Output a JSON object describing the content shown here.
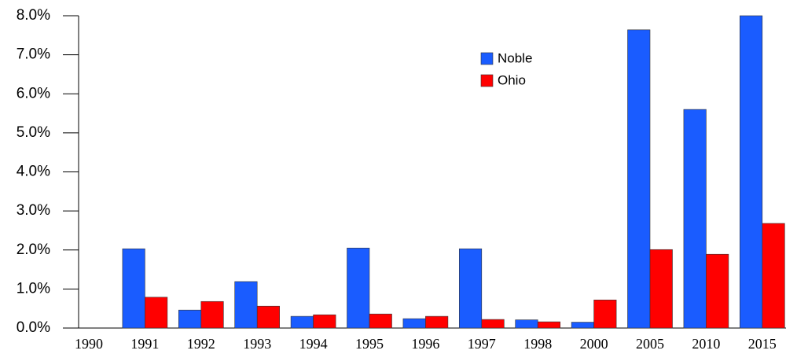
{
  "chart_data": {
    "type": "bar",
    "categories": [
      "1990",
      "1991",
      "1992",
      "1993",
      "1994",
      "1995",
      "1996",
      "1997",
      "1998",
      "2000",
      "2005",
      "2010",
      "2015"
    ],
    "series": [
      {
        "name": "Noble",
        "color": "#1a5cff",
        "values": [
          0,
          2.03,
          0.46,
          1.19,
          0.3,
          2.05,
          0.24,
          2.03,
          0.21,
          0.15,
          7.64,
          5.6,
          8.0
        ]
      },
      {
        "name": "Ohio",
        "color": "#ff0000",
        "values": [
          0,
          0.79,
          0.68,
          0.56,
          0.34,
          0.36,
          0.3,
          0.22,
          0.16,
          0.72,
          2.01,
          1.89,
          2.68
        ]
      }
    ],
    "ylim": [
      0,
      8
    ],
    "yticks": [
      {
        "value": 0,
        "label": "0.0%"
      },
      {
        "value": 1,
        "label": "1.0%"
      },
      {
        "value": 2,
        "label": "2.0%"
      },
      {
        "value": 3,
        "label": "3.0%"
      },
      {
        "value": 4,
        "label": "4.0%"
      },
      {
        "value": 5,
        "label": "5.0%"
      },
      {
        "value": 6,
        "label": "6.0%"
      },
      {
        "value": 7,
        "label": "7.0%"
      },
      {
        "value": 8,
        "label": "8.0%"
      }
    ],
    "legend": "top-right"
  }
}
